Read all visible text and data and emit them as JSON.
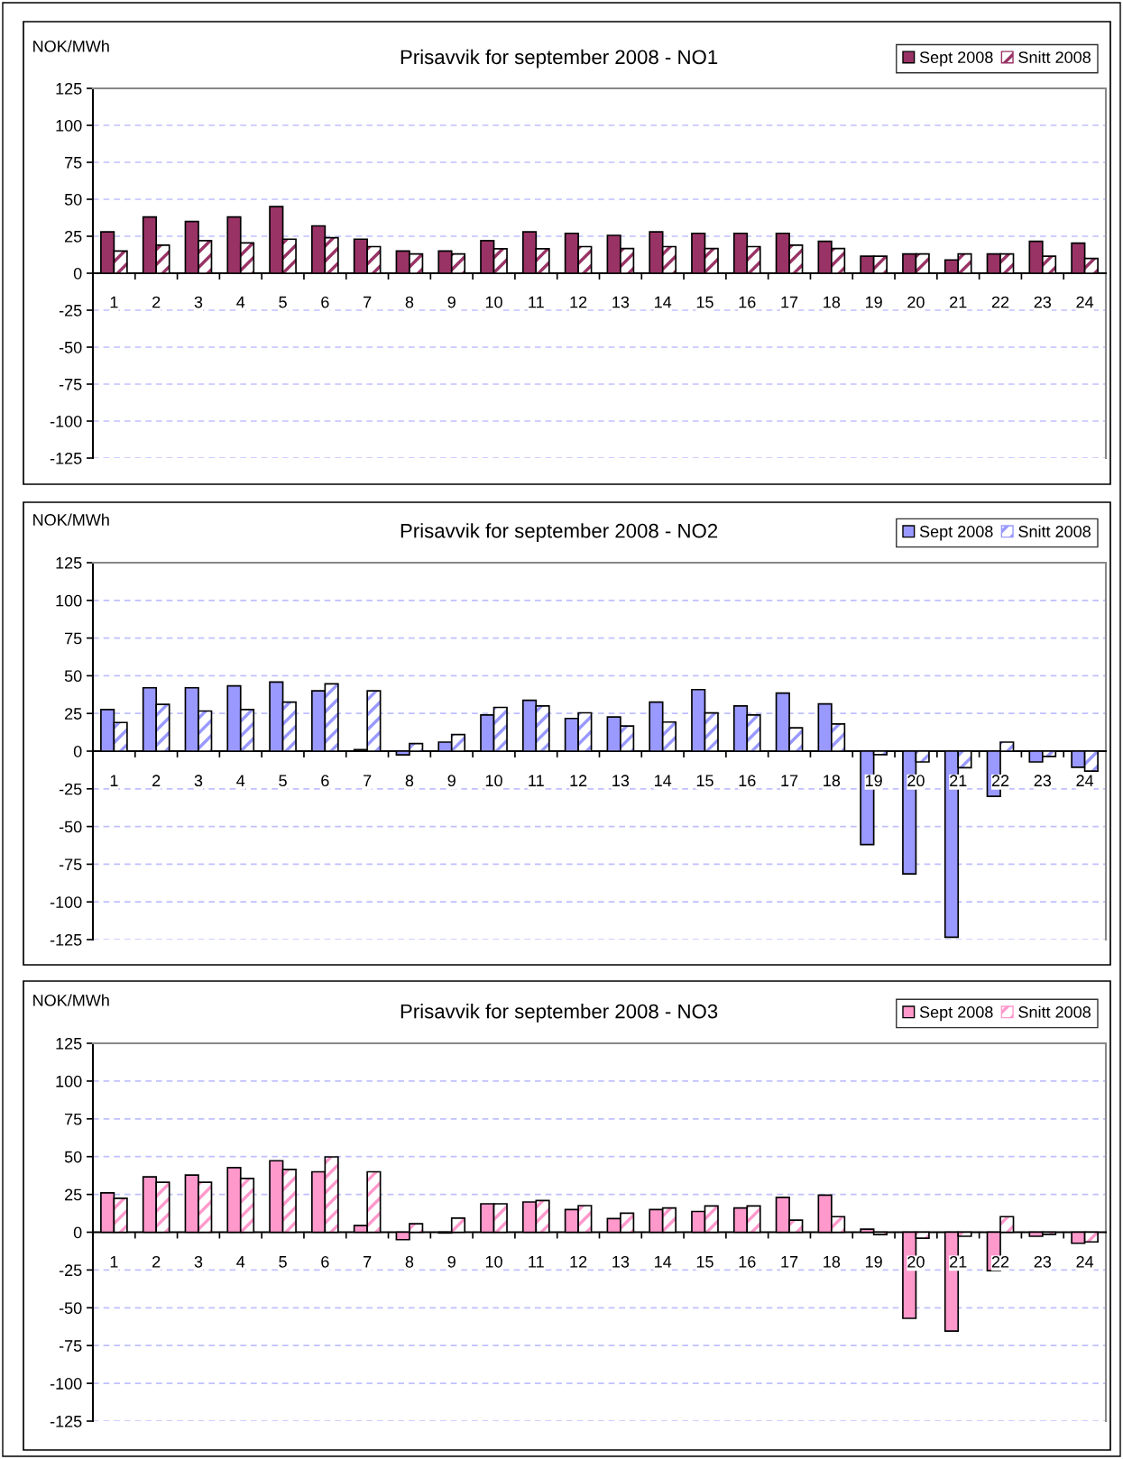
{
  "chart_data": [
    {
      "type": "bar",
      "title": "Prisavvik for september 2008 - NO1",
      "ylabel": "NOK/MWh",
      "categories": [
        "1",
        "2",
        "3",
        "4",
        "5",
        "6",
        "7",
        "8",
        "9",
        "10",
        "11",
        "12",
        "13",
        "14",
        "15",
        "16",
        "17",
        "18",
        "19",
        "20",
        "21",
        "22",
        "23",
        "24"
      ],
      "series": [
        {
          "name": "Sept 2008",
          "color": "#993366",
          "values": [
            28,
            38,
            35,
            38,
            45,
            32,
            23,
            15,
            15,
            22,
            28,
            27,
            25.6,
            28,
            27,
            27,
            27,
            21.6,
            11.5,
            13,
            9,
            13,
            21.6,
            20.4
          ]
        },
        {
          "name": "Snitt 2008",
          "color": "#993366",
          "values": [
            15,
            19,
            22,
            20.5,
            23,
            24,
            18,
            13,
            13,
            16.5,
            16.5,
            18,
            16.7,
            18,
            16.7,
            18,
            19,
            16.7,
            11.5,
            13,
            13,
            13,
            11.5,
            10
          ]
        }
      ],
      "ylim": [
        -125,
        125
      ],
      "yticks": [
        -125,
        -100,
        -75,
        -50,
        -25,
        0,
        25,
        50,
        75,
        100,
        125
      ],
      "grid": "y",
      "legend": "top right"
    },
    {
      "type": "bar",
      "title": "Prisavvik for september 2008 - NO2",
      "ylabel": "NOK/MWh",
      "categories": [
        "1",
        "2",
        "3",
        "4",
        "5",
        "6",
        "7",
        "8",
        "9",
        "10",
        "11",
        "12",
        "13",
        "14",
        "15",
        "16",
        "17",
        "18",
        "19",
        "20",
        "21",
        "22",
        "23",
        "24"
      ],
      "series": [
        {
          "name": "Sept 2008",
          "color": "#9999ff",
          "values": [
            27.6,
            42,
            42,
            43.3,
            45.8,
            40,
            1,
            -2.5,
            6,
            24,
            33.7,
            21.7,
            22.7,
            32.5,
            40.8,
            30,
            38.5,
            31.3,
            -62,
            -81.4,
            -123.4,
            -30,
            -7.2,
            -10.7
          ]
        },
        {
          "name": "Snitt 2008",
          "color": "#9999ff",
          "values": [
            19,
            31,
            26.6,
            27.6,
            32.5,
            44.6,
            40,
            5,
            11,
            29,
            30,
            25.4,
            16.7,
            19.3,
            25.3,
            24,
            15.5,
            18,
            -2.3,
            -7.2,
            -11,
            6,
            -3.5,
            -13.2
          ]
        }
      ],
      "ylim": [
        -125,
        125
      ],
      "yticks": [
        -125,
        -100,
        -75,
        -50,
        -25,
        0,
        25,
        50,
        75,
        100,
        125
      ],
      "grid": "y",
      "legend": "top right"
    },
    {
      "type": "bar",
      "title": "Prisavvik for september 2008 - NO3",
      "ylabel": "NOK/MWh",
      "categories": [
        "1",
        "2",
        "3",
        "4",
        "5",
        "6",
        "7",
        "8",
        "9",
        "10",
        "11",
        "12",
        "13",
        "14",
        "15",
        "16",
        "17",
        "18",
        "19",
        "20",
        "21",
        "22",
        "23",
        "24"
      ],
      "series": [
        {
          "name": "Sept 2008",
          "color": "#ff99cc",
          "values": [
            26,
            36.6,
            37.8,
            42.7,
            47.3,
            40,
            4.4,
            -4.9,
            -0.5,
            18.8,
            20,
            15,
            9,
            15,
            13.7,
            16,
            23,
            24.5,
            2,
            -57,
            -65.4,
            -25.4,
            -2.7,
            -7.3
          ]
        },
        {
          "name": "Snitt 2008",
          "color": "#ff99cc",
          "values": [
            22.4,
            33,
            33,
            35.6,
            41.5,
            49.8,
            40,
            5.6,
            9.3,
            18.8,
            21,
            17.6,
            12.6,
            16,
            17.4,
            17.4,
            8,
            10.3,
            -1.6,
            -4,
            -2.7,
            10.3,
            -1.4,
            -6.4
          ]
        }
      ],
      "ylim": [
        -125,
        125
      ],
      "yticks": [
        -125,
        -100,
        -75,
        -50,
        -25,
        0,
        25,
        50,
        75,
        100,
        125
      ],
      "grid": "y",
      "legend": "top right"
    }
  ]
}
